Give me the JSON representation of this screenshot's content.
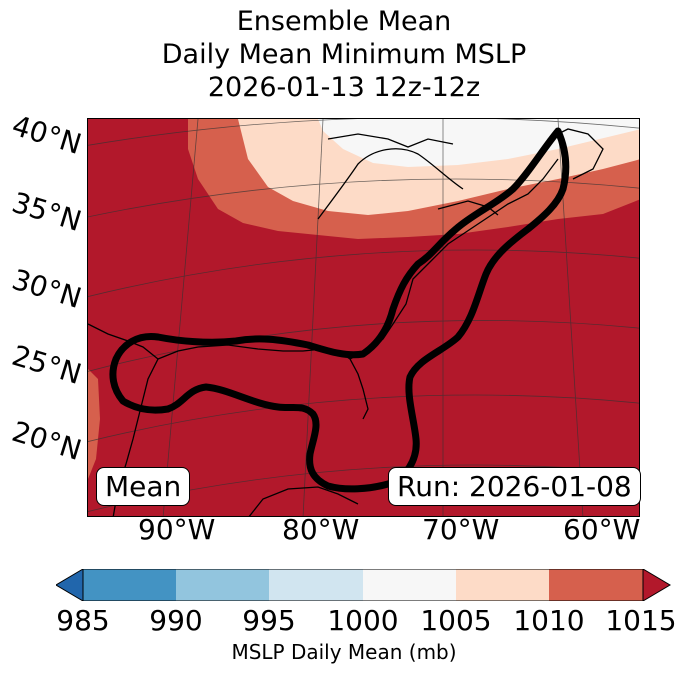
{
  "title": {
    "line1": "Ensemble Mean",
    "line2": "Daily Mean Minimum MSLP",
    "line3": "2026-01-13 12z-12z"
  },
  "map": {
    "lat_labels": [
      "40°N",
      "35°N",
      "30°N",
      "25°N",
      "20°N"
    ],
    "lon_labels": [
      "90°W",
      "80°W",
      "70°W",
      "60°W"
    ],
    "mean_label": "Mean",
    "run_label": "Run: 2026-01-08"
  },
  "colorbar": {
    "ticks": [
      "985",
      "990",
      "995",
      "1000",
      "1005",
      "1010",
      "1015"
    ],
    "label": "MSLP Daily Mean (mb)",
    "colors": [
      "#2166ac",
      "#4393c3",
      "#92c5de",
      "#d1e5f0",
      "#f7f7f7",
      "#fddbc7",
      "#d6604d",
      "#b2182b"
    ]
  }
}
